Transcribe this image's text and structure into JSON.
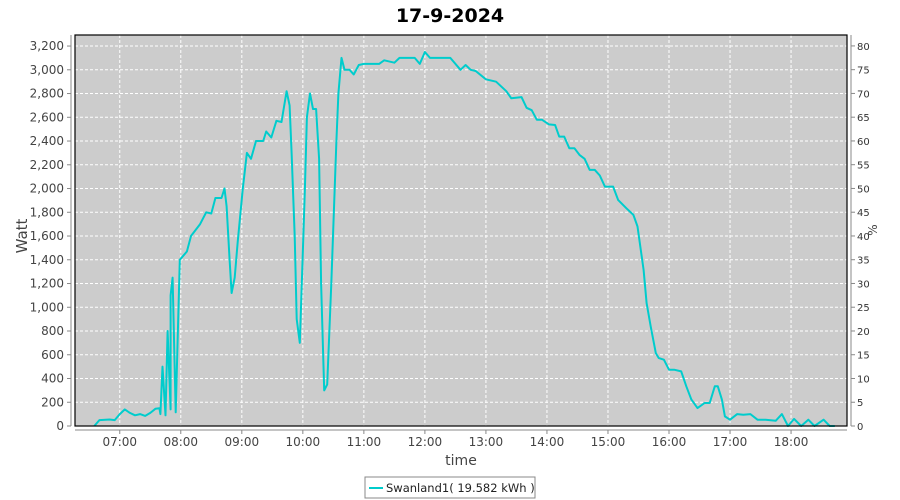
{
  "chart_data": {
    "type": "line",
    "title": "17-9-2024",
    "xlabel": "time",
    "ylabel": "Watt",
    "y2label": "%",
    "xlim": [
      "06:16",
      "18:55"
    ],
    "ylim": [
      0,
      3293
    ],
    "y2lim": [
      0,
      82.3
    ],
    "x_ticks": [
      "07:00",
      "08:00",
      "09:00",
      "10:00",
      "11:00",
      "12:00",
      "13:00",
      "14:00",
      "15:00",
      "16:00",
      "17:00",
      "18:00"
    ],
    "y_ticks": [
      0,
      200,
      400,
      600,
      800,
      1000,
      1200,
      1400,
      1600,
      1800,
      2000,
      2200,
      2400,
      2600,
      2800,
      3000,
      3200
    ],
    "y_tick_labels": [
      "0",
      "200",
      "400",
      "600",
      "800",
      "1,000",
      "1,200",
      "1,400",
      "1,600",
      "1,800",
      "2,000",
      "2,200",
      "2,400",
      "2,600",
      "2,800",
      "3,000",
      "3,200"
    ],
    "y2_ticks": [
      0,
      5,
      10,
      15,
      20,
      25,
      30,
      35,
      40,
      45,
      50,
      55,
      60,
      65,
      70,
      75,
      80
    ],
    "grid": true,
    "legend_position": "bottom",
    "colors": {
      "line": "#00CCCC",
      "plot_bg": "#CCCCCC",
      "grid": "#FFFFFF"
    },
    "series": [
      {
        "name": "Swanland1( 19.582 kWh )",
        "points": [
          [
            "06:35",
            0
          ],
          [
            "06:40",
            50
          ],
          [
            "06:50",
            55
          ],
          [
            "06:55",
            50
          ],
          [
            "07:00",
            100
          ],
          [
            "07:05",
            140
          ],
          [
            "07:10",
            110
          ],
          [
            "07:15",
            90
          ],
          [
            "07:20",
            100
          ],
          [
            "07:25",
            85
          ],
          [
            "07:30",
            110
          ],
          [
            "07:35",
            145
          ],
          [
            "07:40",
            100
          ],
          [
            "07:45",
            90
          ],
          [
            "07:50",
            140
          ],
          [
            "07:55",
            115
          ],
          [
            "07:39",
            150
          ],
          [
            "07:42",
            500
          ],
          [
            "07:47",
            800
          ],
          [
            "07:50",
            1100
          ],
          [
            "07:52",
            1250
          ],
          [
            "07:59",
            1400
          ],
          [
            "08:06",
            1470
          ],
          [
            "08:10",
            1600
          ],
          [
            "08:19",
            1700
          ],
          [
            "08:25",
            1800
          ],
          [
            "08:30",
            1790
          ],
          [
            "08:34",
            1920
          ],
          [
            "08:40",
            1920
          ],
          [
            "08:43",
            2000
          ],
          [
            "08:45",
            1850
          ],
          [
            "08:48",
            1400
          ],
          [
            "08:50",
            1120
          ],
          [
            "08:53",
            1250
          ],
          [
            "08:56",
            1550
          ],
          [
            "09:01",
            2000
          ],
          [
            "09:05",
            2300
          ],
          [
            "09:09",
            2250
          ],
          [
            "09:14",
            2400
          ],
          [
            "09:21",
            2400
          ],
          [
            "09:24",
            2480
          ],
          [
            "09:29",
            2430
          ],
          [
            "09:34",
            2570
          ],
          [
            "09:39",
            2560
          ],
          [
            "09:44",
            2820
          ],
          [
            "09:47",
            2700
          ],
          [
            "09:49",
            2300
          ],
          [
            "09:52",
            1600
          ],
          [
            "09:54",
            900
          ],
          [
            "09:57",
            700
          ],
          [
            "09:59",
            1200
          ],
          [
            "10:02",
            2000
          ],
          [
            "10:04",
            2600
          ],
          [
            "10:07",
            2800
          ],
          [
            "10:10",
            2670
          ],
          [
            "10:13",
            2670
          ],
          [
            "10:16",
            2250
          ],
          [
            "10:18",
            1200
          ],
          [
            "10:21",
            300
          ],
          [
            "10:24",
            350
          ],
          [
            "10:28",
            1200
          ],
          [
            "10:33",
            2400
          ],
          [
            "10:35",
            2800
          ],
          [
            "10:38",
            3100
          ],
          [
            "10:41",
            3000
          ],
          [
            "10:46",
            3000
          ],
          [
            "10:50",
            2960
          ],
          [
            "10:55",
            3040
          ],
          [
            "11:00",
            3050
          ],
          [
            "11:15",
            3050
          ],
          [
            "11:20",
            3080
          ],
          [
            "11:30",
            3060
          ],
          [
            "11:35",
            3100
          ],
          [
            "11:50",
            3100
          ],
          [
            "11:55",
            3050
          ],
          [
            "12:00",
            3150
          ],
          [
            "12:05",
            3100
          ],
          [
            "12:10",
            3100
          ],
          [
            "12:25",
            3100
          ],
          [
            "12:35",
            3000
          ],
          [
            "12:40",
            3040
          ],
          [
            "12:45",
            3000
          ],
          [
            "12:50",
            2990
          ],
          [
            "13:00",
            2920
          ],
          [
            "13:10",
            2900
          ],
          [
            "13:20",
            2820
          ],
          [
            "13:25",
            2760
          ],
          [
            "13:35",
            2770
          ],
          [
            "13:40",
            2680
          ],
          [
            "13:45",
            2660
          ],
          [
            "13:50",
            2580
          ],
          [
            "13:55",
            2580
          ],
          [
            "14:02",
            2540
          ],
          [
            "14:08",
            2535
          ],
          [
            "14:12",
            2437
          ],
          [
            "14:17",
            2437
          ],
          [
            "14:22",
            2340
          ],
          [
            "14:27",
            2340
          ],
          [
            "14:32",
            2283
          ],
          [
            "14:37",
            2250
          ],
          [
            "14:42",
            2157
          ],
          [
            "14:47",
            2157
          ],
          [
            "14:52",
            2110
          ],
          [
            "14:57",
            2016
          ],
          [
            "15:05",
            2016
          ],
          [
            "15:10",
            1904
          ],
          [
            "15:18",
            1834
          ],
          [
            "15:25",
            1778
          ],
          [
            "15:29",
            1680
          ],
          [
            "15:32",
            1500
          ],
          [
            "15:35",
            1315
          ],
          [
            "15:38",
            1035
          ],
          [
            "15:42",
            839
          ],
          [
            "15:47",
            614
          ],
          [
            "15:50",
            572
          ],
          [
            "15:55",
            558
          ],
          [
            "16:00",
            474
          ],
          [
            "16:05",
            474
          ],
          [
            "16:12",
            460
          ],
          [
            "16:17",
            334
          ],
          [
            "16:22",
            222
          ],
          [
            "16:28",
            151
          ],
          [
            "16:35",
            194
          ],
          [
            "16:40",
            194
          ],
          [
            "16:45",
            334
          ],
          [
            "16:48",
            334
          ],
          [
            "16:52",
            222
          ],
          [
            "16:55",
            81
          ],
          [
            "17:00",
            53
          ],
          [
            "17:07",
            100
          ],
          [
            "17:13",
            95
          ],
          [
            "17:20",
            100
          ],
          [
            "17:27",
            53
          ],
          [
            "17:35",
            53
          ],
          [
            "17:45",
            45
          ],
          [
            "17:51",
            100
          ],
          [
            "17:57",
            0
          ],
          [
            "18:03",
            60
          ],
          [
            "18:10",
            0
          ],
          [
            "18:17",
            53
          ],
          [
            "18:23",
            0
          ],
          [
            "18:32",
            53
          ],
          [
            "18:38",
            0
          ],
          [
            "18:43",
            0
          ]
        ]
      }
    ]
  }
}
